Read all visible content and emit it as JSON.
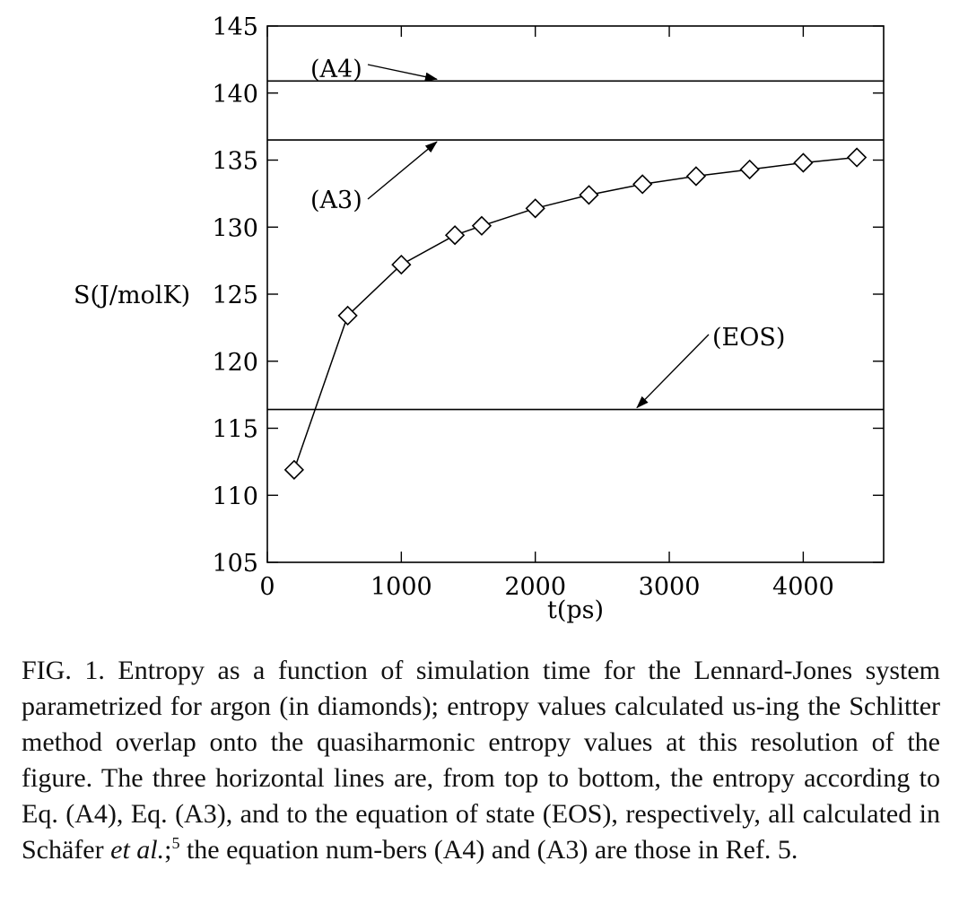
{
  "chart_data": {
    "type": "line",
    "xlabel": "t(ps)",
    "ylabel": "S(J/molK)",
    "xlim": [
      0,
      4600
    ],
    "ylim": [
      105,
      145
    ],
    "x_ticks": [
      0,
      1000,
      2000,
      3000,
      4000
    ],
    "x_tick_labels": [
      "0",
      "1000",
      "2000",
      "3000",
      "4000"
    ],
    "y_ticks": [
      105,
      110,
      115,
      120,
      125,
      130,
      135,
      140,
      145
    ],
    "y_tick_labels": [
      "105",
      "110",
      "115",
      "120",
      "125",
      "130",
      "135",
      "140",
      "145"
    ],
    "grid": false,
    "marker": "diamond",
    "series": [
      {
        "x": [
          200,
          600,
          1000,
          1400,
          1600,
          2000,
          2400,
          2800,
          3200,
          3600,
          4000,
          4400
        ],
        "y": [
          111.9,
          123.4,
          127.2,
          129.4,
          130.1,
          131.4,
          132.4,
          133.2,
          133.8,
          134.3,
          134.8,
          135.2
        ]
      }
    ],
    "reference_lines": [
      {
        "label": "(A4)",
        "y": 140.9
      },
      {
        "label": "(A3)",
        "y": 136.5
      },
      {
        "label": "(EOS)",
        "y": 116.4
      }
    ]
  },
  "caption": {
    "part1": "FIG. 1. Entropy as a function of simulation time for the Lennard-Jones system parametrized for argon (in diamonds); entropy values calculated us-ing the Schlitter method overlap onto the quasiharmonic entropy values at this resolution of the figure. The three horizontal lines are, from top to bottom, the entropy according to Eq. (A4), Eq. (A3), and to the equation of state (EOS), respectively, all calculated in Schäfer ",
    "italic": "et al.",
    "part2": ";",
    "sup": "5",
    "part3": " the equation num-bers (A4) and (A3) are those in Ref. 5."
  }
}
